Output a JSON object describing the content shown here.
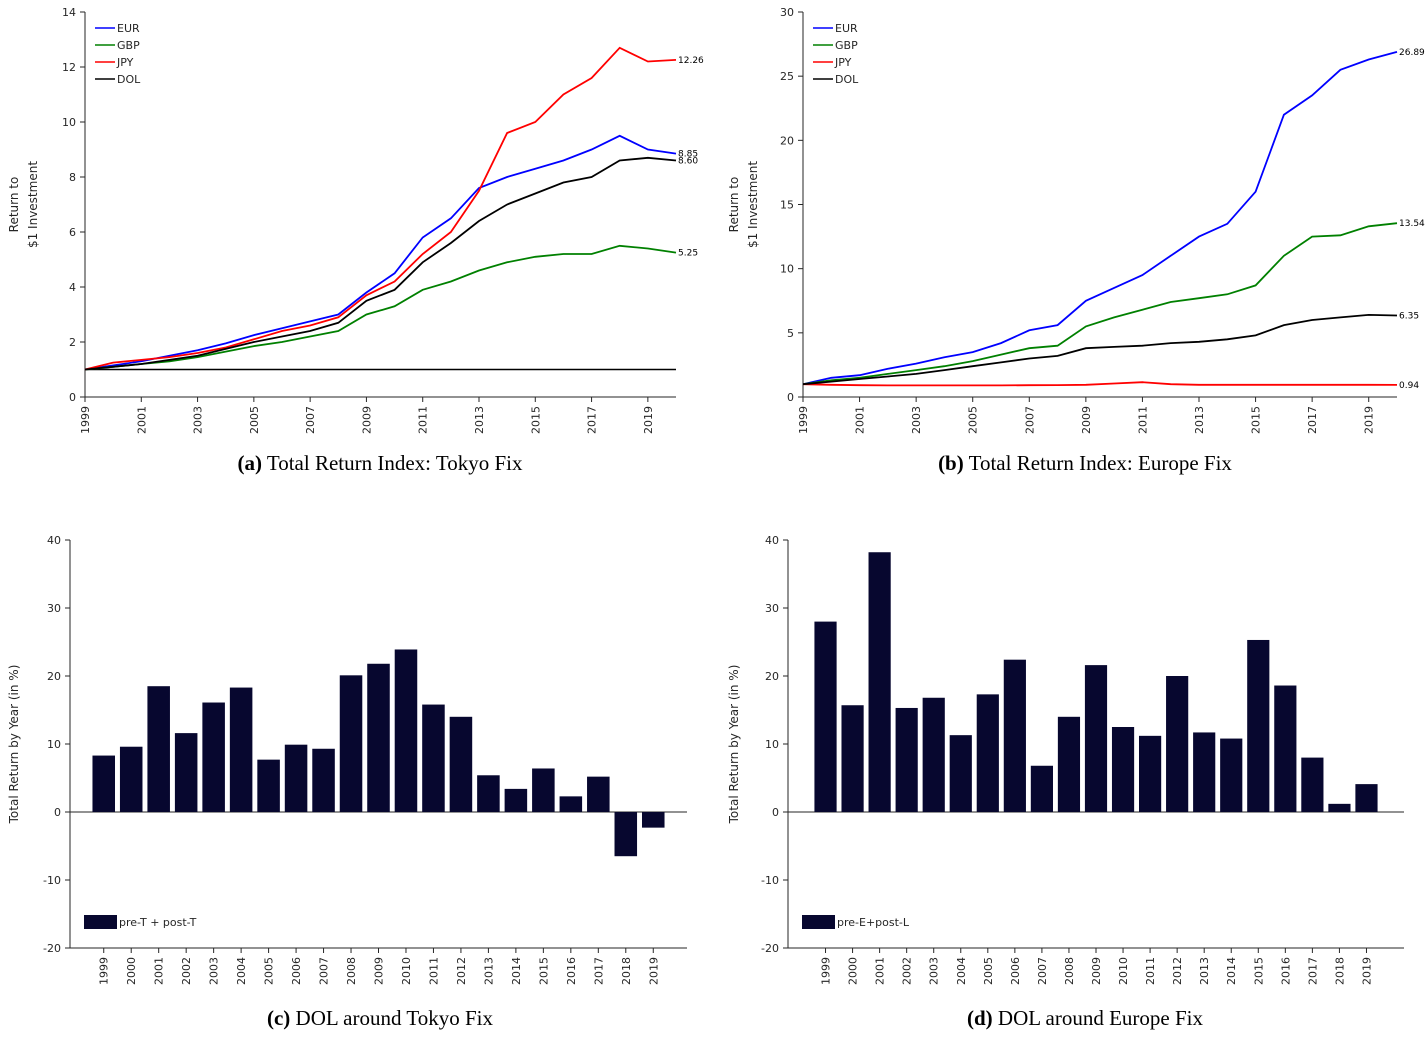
{
  "chart_data": [
    {
      "type": "line",
      "caption_label": "(a)",
      "caption": "Total Return Index: Tokyo Fix",
      "ylabel": [
        "Return to",
        "$1 Investment"
      ],
      "x": [
        1999,
        2000,
        2001,
        2002,
        2003,
        2004,
        2005,
        2006,
        2007,
        2008,
        2009,
        2010,
        2011,
        2012,
        2013,
        2014,
        2015,
        2016,
        2017,
        2018,
        2019,
        2020
      ],
      "xlim": [
        1999,
        2020
      ],
      "xticks": [
        1999,
        2001,
        2003,
        2005,
        2007,
        2009,
        2011,
        2013,
        2015,
        2017,
        2019
      ],
      "ylim": [
        0,
        14
      ],
      "yticks": [
        0,
        2,
        4,
        6,
        8,
        10,
        12,
        14
      ],
      "hline": 1,
      "legend": "upper left",
      "series": [
        {
          "name": "EUR",
          "color": "#0000ff",
          "end_label": "8.85",
          "values": [
            1.0,
            1.15,
            1.3,
            1.5,
            1.7,
            1.95,
            2.25,
            2.5,
            2.75,
            3.0,
            3.8,
            4.5,
            5.8,
            6.5,
            7.6,
            8.0,
            8.3,
            8.6,
            9.0,
            9.5,
            9.0,
            8.85
          ]
        },
        {
          "name": "GBP",
          "color": "#008000",
          "end_label": "5.25",
          "values": [
            1.0,
            1.1,
            1.2,
            1.3,
            1.45,
            1.65,
            1.85,
            2.0,
            2.2,
            2.4,
            3.0,
            3.3,
            3.9,
            4.2,
            4.6,
            4.9,
            5.1,
            5.2,
            5.2,
            5.5,
            5.4,
            5.25
          ]
        },
        {
          "name": "JPY",
          "color": "#ff0000",
          "end_label": "12.26",
          "values": [
            1.0,
            1.25,
            1.35,
            1.45,
            1.6,
            1.8,
            2.1,
            2.4,
            2.6,
            2.9,
            3.7,
            4.2,
            5.2,
            6.0,
            7.5,
            9.6,
            10.0,
            11.0,
            11.6,
            12.7,
            12.2,
            12.26
          ]
        },
        {
          "name": "DOL",
          "color": "#000000",
          "end_label": "8.60",
          "values": [
            1.0,
            1.1,
            1.2,
            1.35,
            1.5,
            1.75,
            2.0,
            2.2,
            2.4,
            2.7,
            3.5,
            3.9,
            4.9,
            5.6,
            6.4,
            7.0,
            7.4,
            7.8,
            8.0,
            8.6,
            8.7,
            8.6
          ]
        }
      ]
    },
    {
      "type": "line",
      "caption_label": "(b)",
      "caption": "Total Return Index: Europe Fix",
      "ylabel": [
        "Return to",
        "$1 Investment"
      ],
      "x": [
        1999,
        2000,
        2001,
        2002,
        2003,
        2004,
        2005,
        2006,
        2007,
        2008,
        2009,
        2010,
        2011,
        2012,
        2013,
        2014,
        2015,
        2016,
        2017,
        2018,
        2019,
        2020
      ],
      "xlim": [
        1999,
        2020
      ],
      "xticks": [
        1999,
        2001,
        2003,
        2005,
        2007,
        2009,
        2011,
        2013,
        2015,
        2017,
        2019
      ],
      "ylim": [
        0,
        30
      ],
      "yticks": [
        0,
        5,
        10,
        15,
        20,
        25,
        30
      ],
      "legend": "upper left",
      "series": [
        {
          "name": "EUR",
          "color": "#0000ff",
          "end_label": "26.89",
          "values": [
            1,
            1.5,
            1.7,
            2.2,
            2.6,
            3.1,
            3.5,
            4.2,
            5.2,
            5.6,
            7.5,
            8.5,
            9.5,
            11,
            12.5,
            13.5,
            16,
            22,
            23.5,
            25.5,
            26.3,
            26.89
          ]
        },
        {
          "name": "GBP",
          "color": "#008000",
          "end_label": "13.54",
          "values": [
            1,
            1.3,
            1.5,
            1.8,
            2.1,
            2.4,
            2.8,
            3.3,
            3.8,
            4.0,
            5.5,
            6.2,
            6.8,
            7.4,
            7.7,
            8.0,
            8.7,
            11,
            12.5,
            12.6,
            13.3,
            13.54
          ]
        },
        {
          "name": "JPY",
          "color": "#ff0000",
          "end_label": "0.94",
          "values": [
            1,
            0.95,
            0.92,
            0.9,
            0.9,
            0.9,
            0.9,
            0.9,
            0.92,
            0.93,
            0.95,
            1.05,
            1.15,
            1.0,
            0.95,
            0.95,
            0.95,
            0.95,
            0.95,
            0.95,
            0.95,
            0.94
          ]
        },
        {
          "name": "DOL",
          "color": "#000000",
          "end_label": "6.35",
          "values": [
            1,
            1.2,
            1.4,
            1.6,
            1.8,
            2.1,
            2.4,
            2.7,
            3.0,
            3.2,
            3.8,
            3.9,
            4.0,
            4.2,
            4.3,
            4.5,
            4.8,
            5.6,
            6.0,
            6.2,
            6.4,
            6.35
          ]
        }
      ]
    },
    {
      "type": "bar",
      "caption_label": "(c)",
      "caption": "DOL around Tokyo Fix",
      "ylabel": [
        "Total Return by Year (in %)"
      ],
      "categories": [
        "1999",
        "2000",
        "2001",
        "2002",
        "2003",
        "2004",
        "2005",
        "2006",
        "2007",
        "2008",
        "2009",
        "2010",
        "2011",
        "2012",
        "2013",
        "2014",
        "2015",
        "2016",
        "2017",
        "2018",
        "2019"
      ],
      "ylim": [
        -20,
        40
      ],
      "yticks": [
        -20,
        -10,
        0,
        10,
        20,
        30,
        40
      ],
      "legend": "lower left",
      "series": [
        {
          "name": "pre-T  + post-T",
          "color": "#07072f",
          "values": [
            8.3,
            9.6,
            18.5,
            11.6,
            16.1,
            18.3,
            7.7,
            9.9,
            9.3,
            20.1,
            21.8,
            23.9,
            15.8,
            14.0,
            5.4,
            3.4,
            6.4,
            2.3,
            5.2,
            -6.5,
            -2.3
          ]
        }
      ]
    },
    {
      "type": "bar",
      "caption_label": "(d)",
      "caption": "DOL around Europe Fix",
      "ylabel": [
        "Total Return by Year (in %)"
      ],
      "categories": [
        "1999",
        "2000",
        "2001",
        "2002",
        "2003",
        "2004",
        "2005",
        "2006",
        "2007",
        "2008",
        "2009",
        "2010",
        "2011",
        "2012",
        "2013",
        "2014",
        "2015",
        "2016",
        "2017",
        "2018",
        "2019"
      ],
      "ylim": [
        -20,
        40
      ],
      "yticks": [
        -20,
        -10,
        0,
        10,
        20,
        30,
        40
      ],
      "legend": "lower left",
      "series": [
        {
          "name": "pre-E+post-L",
          "color": "#07072f",
          "values": [
            28.0,
            15.7,
            38.2,
            15.3,
            16.8,
            11.3,
            17.3,
            22.4,
            6.8,
            14.0,
            21.6,
            12.5,
            11.2,
            20.0,
            11.7,
            10.8,
            25.3,
            18.6,
            8.0,
            1.2,
            4.1
          ]
        }
      ]
    }
  ]
}
